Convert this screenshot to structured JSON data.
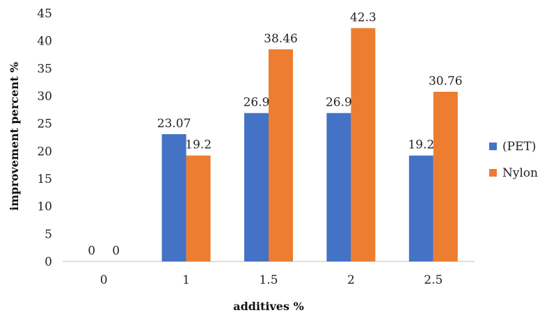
{
  "chart_data": {
    "type": "bar",
    "categories": [
      "0",
      "1",
      "1.5",
      "2",
      "2.5"
    ],
    "series": [
      {
        "name": "(PET)",
        "color": "#4472C4",
        "values": [
          0,
          23.07,
          26.9,
          26.9,
          19.2
        ],
        "labels": [
          "0",
          "23.07",
          "26.9",
          "26.9",
          "19.2"
        ]
      },
      {
        "name": "Nylon",
        "color": "#ED7D31",
        "values": [
          0,
          19.2,
          38.46,
          42.3,
          30.76
        ],
        "labels": [
          "0",
          "19.2",
          "38.46",
          "42.3",
          "30.76"
        ]
      }
    ],
    "title": "",
    "xlabel": "additives %",
    "ylabel": "improvement percent %",
    "ylim": [
      0,
      45
    ],
    "yticks": [
      "0",
      "5",
      "10",
      "15",
      "20",
      "25",
      "30",
      "35",
      "40",
      "45"
    ],
    "grid": false,
    "legend_position": "right"
  }
}
